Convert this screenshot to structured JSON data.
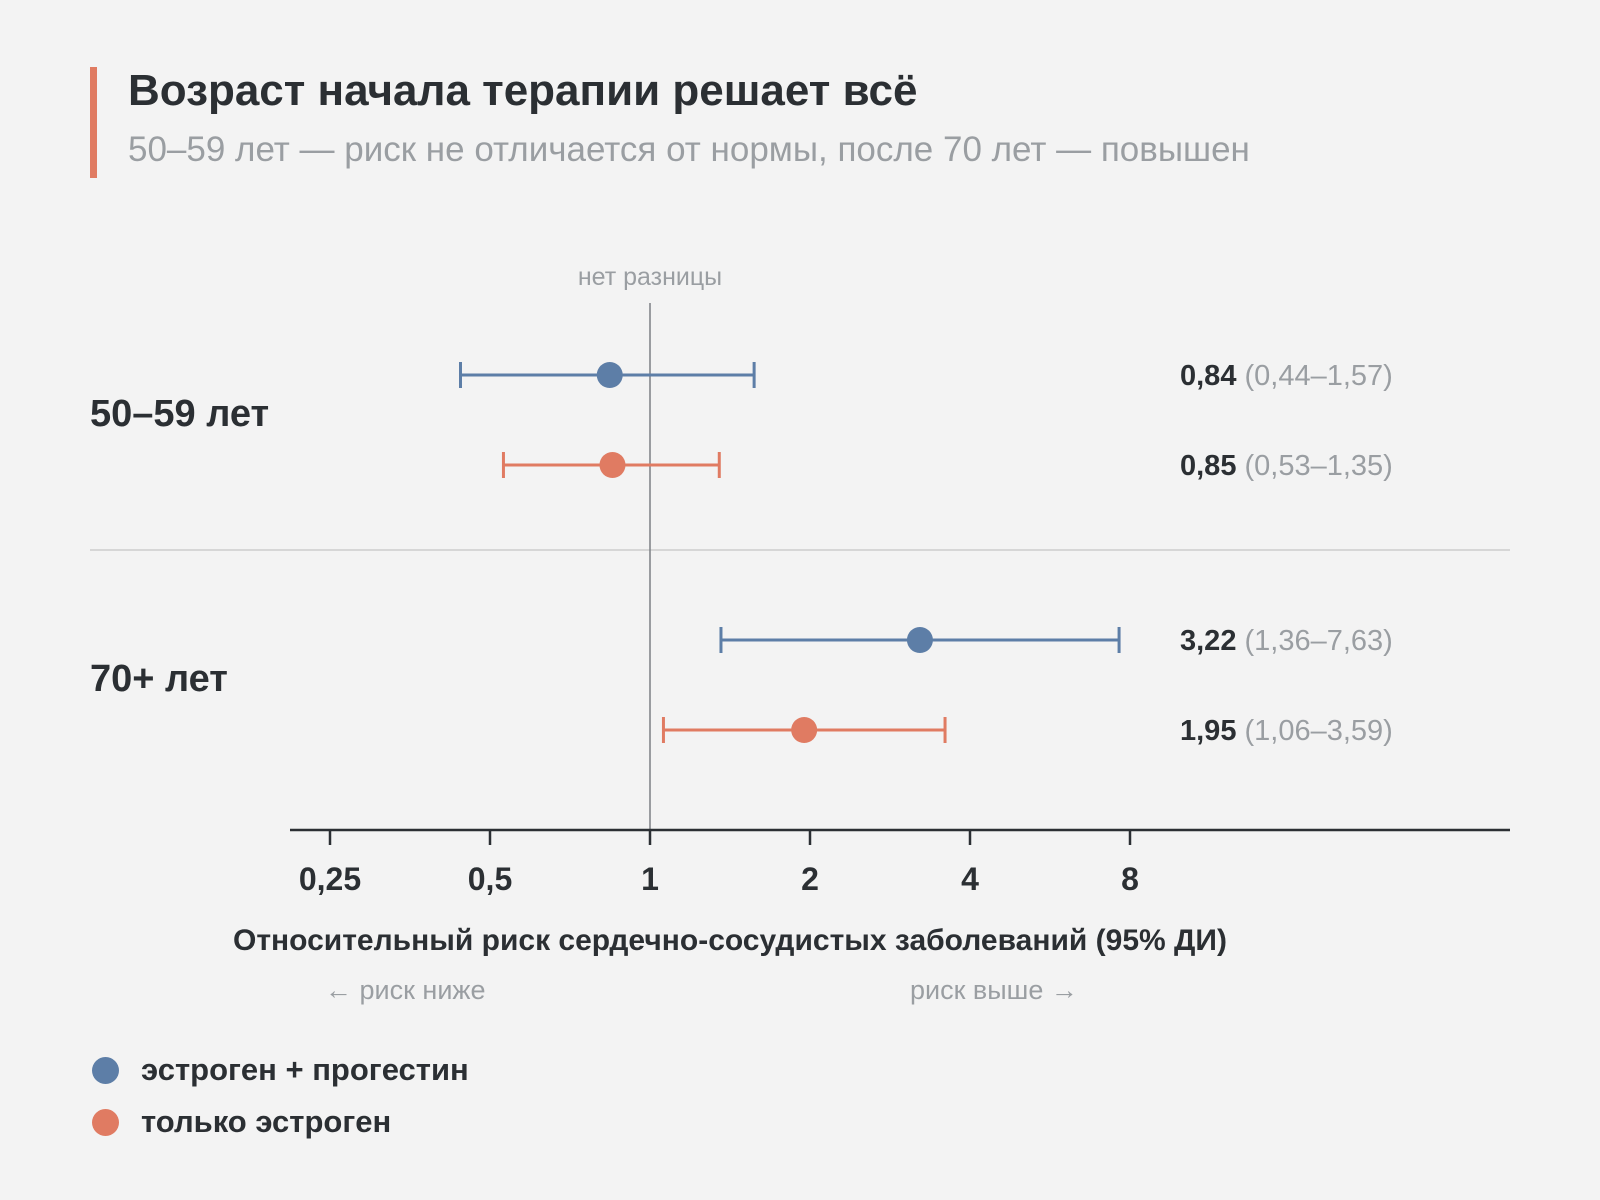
{
  "header": {
    "title": "Возраст начала терапии решает всё",
    "subtitle": "50–59 лет — риск не отличается от нормы, после 70 лет — повышен"
  },
  "colors": {
    "accent": "#e07b62",
    "series_a": "#5d7ea7",
    "series_b": "#e07b62",
    "text": "#2b2f33",
    "muted": "#9a9ea2",
    "axis": "#2b2f33",
    "divider": "#d6d6d6"
  },
  "chart_data": {
    "type": "forest",
    "x_scale": "log2",
    "xlim": [
      0.25,
      16
    ],
    "xticks": [
      0.25,
      0.5,
      1,
      2,
      4,
      8
    ],
    "xtick_labels": [
      "0,25",
      "0,5",
      "1",
      "2",
      "4",
      "8"
    ],
    "xlabel": "Относительный риск сердечно-сосудистых заболеваний (95% ДИ)",
    "reference": {
      "value": 1,
      "label": "нет разницы"
    },
    "direction_labels": {
      "lower": "← риск ниже",
      "higher": "риск выше →"
    },
    "groups": [
      {
        "label": "50–59 лет",
        "rows": [
          {
            "series": 0,
            "estimate": 0.84,
            "low": 0.44,
            "high": 1.57,
            "estimate_label": "0,84",
            "ci_label": "(0,44–1,57)"
          },
          {
            "series": 1,
            "estimate": 0.85,
            "low": 0.53,
            "high": 1.35,
            "estimate_label": "0,85",
            "ci_label": "(0,53–1,35)"
          }
        ]
      },
      {
        "label": "70+ лет",
        "rows": [
          {
            "series": 0,
            "estimate": 3.22,
            "low": 1.36,
            "high": 7.63,
            "estimate_label": "3,22",
            "ci_label": "(1,36–7,63)"
          },
          {
            "series": 1,
            "estimate": 1.95,
            "low": 1.06,
            "high": 3.59,
            "estimate_label": "1,95",
            "ci_label": "(1,06–3,59)"
          }
        ]
      }
    ],
    "series": [
      {
        "name": "эстроген + прогестин",
        "color": "#5d7ea7"
      },
      {
        "name": "только эстроген",
        "color": "#e07b62"
      }
    ]
  }
}
